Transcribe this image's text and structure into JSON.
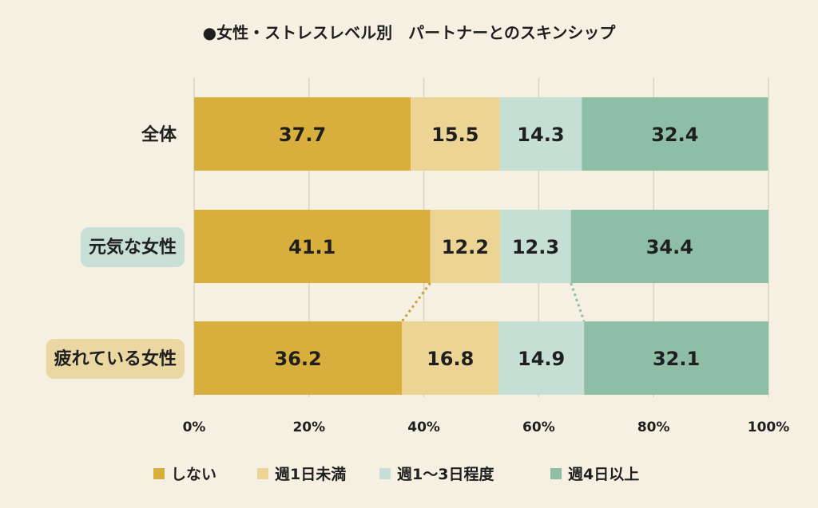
{
  "chart_data": {
    "type": "bar",
    "orientation": "horizontal",
    "stacked": true,
    "title": "●女性・ストレスレベル別　パートナーとのスキンシップ",
    "categories": [
      "全体",
      "元気な女性",
      "疲れている女性"
    ],
    "series": [
      {
        "name": "しない",
        "values": [
          37.7,
          41.1,
          36.2
        ],
        "color": "#d8ae3d"
      },
      {
        "name": "週1日未満",
        "values": [
          15.5,
          12.2,
          16.8
        ],
        "color": "#ecd594"
      },
      {
        "name": "週1～3日程度",
        "values": [
          14.3,
          12.3,
          14.9
        ],
        "color": "#c6dfd4"
      },
      {
        "name": "週4日以上",
        "values": [
          32.4,
          34.4,
          32.1
        ],
        "color": "#8fbea6"
      }
    ],
    "xlim": [
      0,
      100
    ],
    "xticks": [
      "0%",
      "20%",
      "40%",
      "60%",
      "80%",
      "100%"
    ],
    "grid": true,
    "legend_position": "bottom",
    "category_label_backgrounds": [
      "",
      "#c8dfd6",
      "#ead7a2"
    ],
    "connector_lines": [
      {
        "color": "#c9a234",
        "series_boundary": 1
      },
      {
        "color": "#8fbea6",
        "series_boundary": 3
      }
    ]
  }
}
